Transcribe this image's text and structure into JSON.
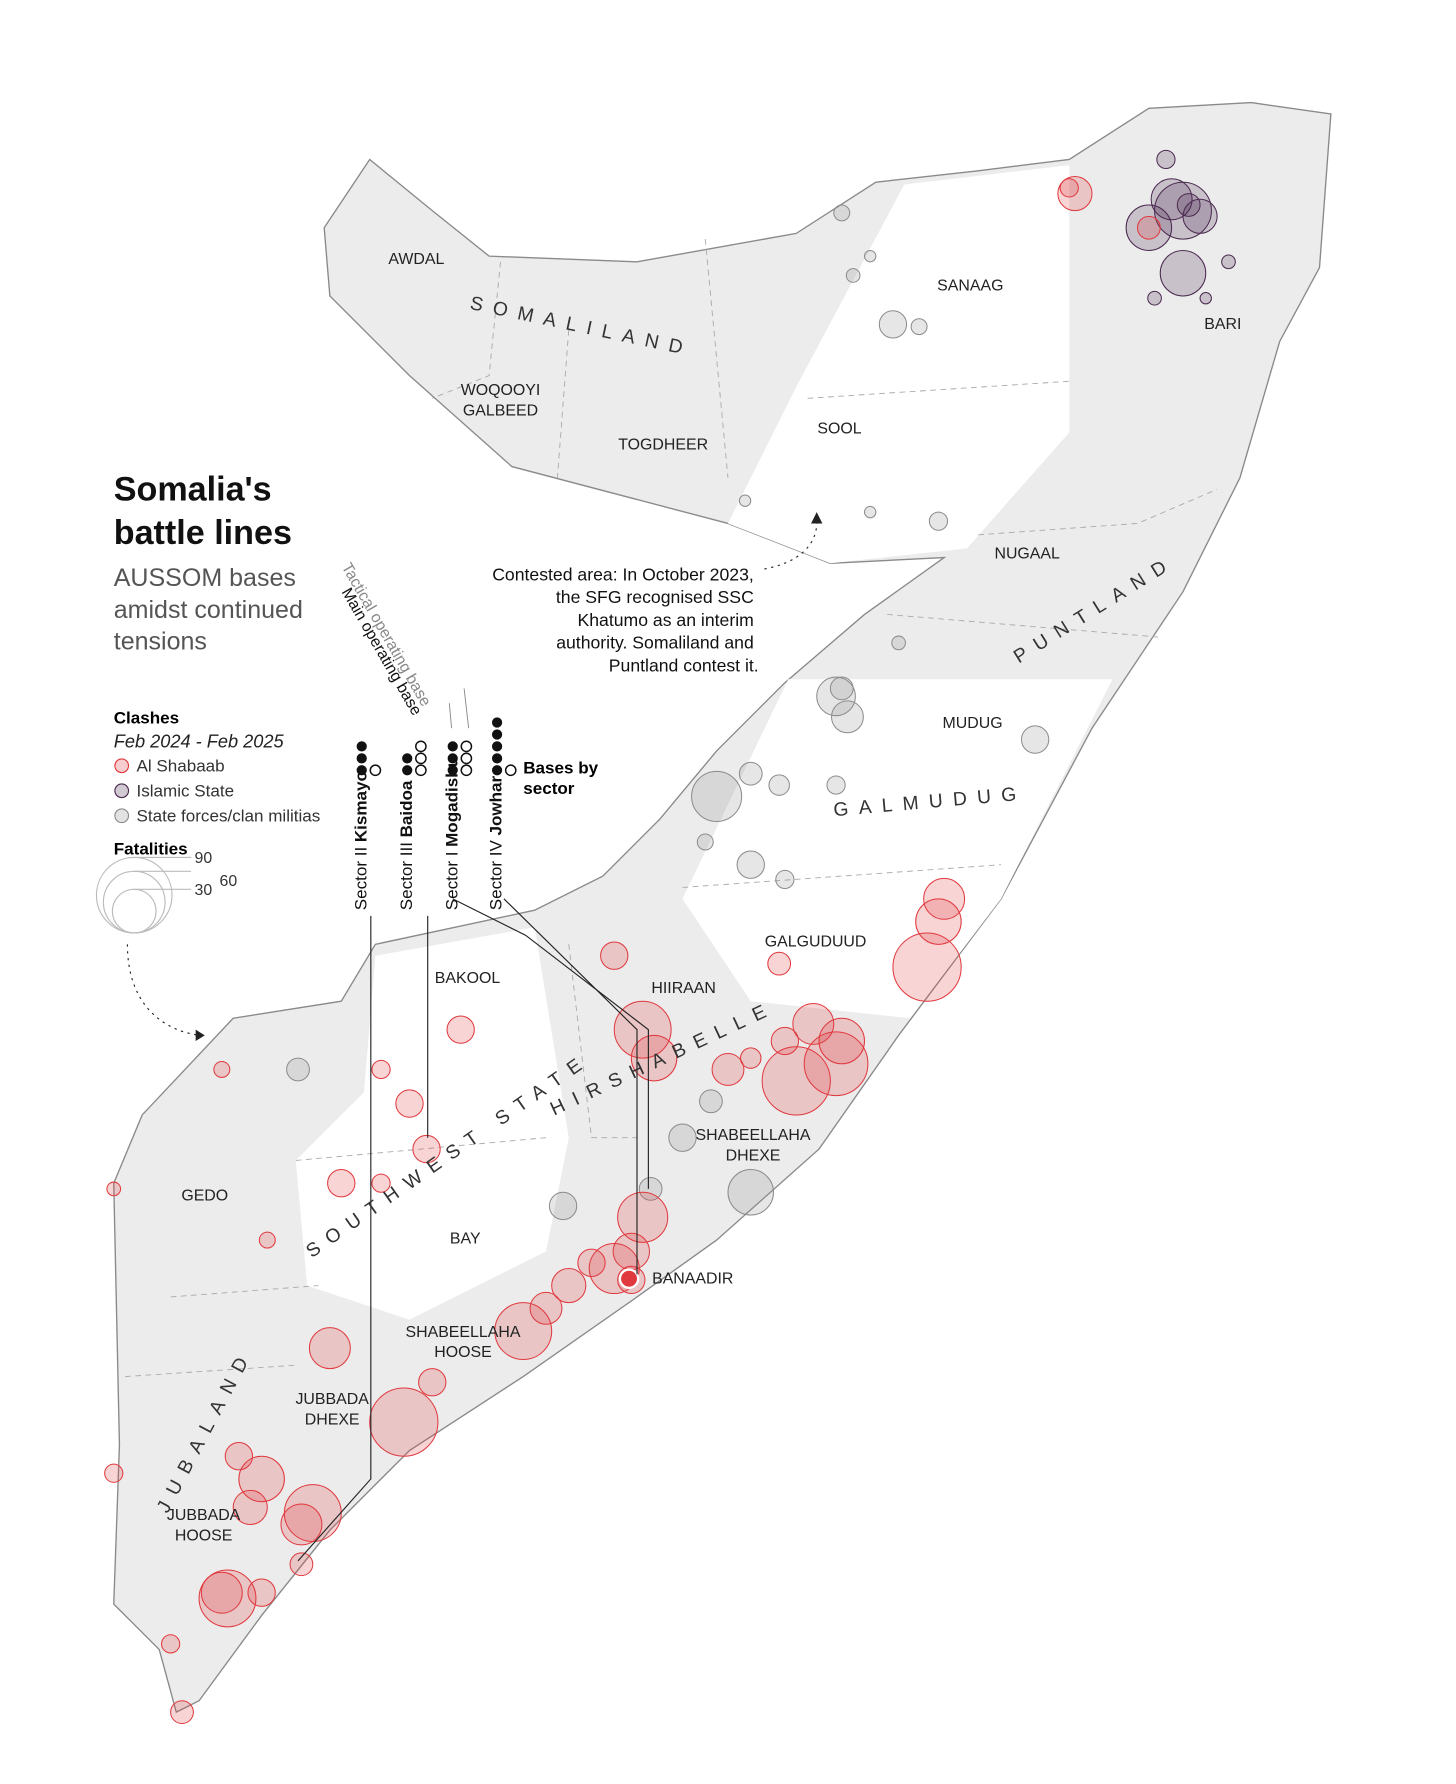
{
  "header": {
    "title_lines": [
      "Somalia's",
      "battle lines"
    ],
    "subtitle_lines": [
      "AUSSOM bases",
      "amidst continued",
      "tensions"
    ]
  },
  "legend": {
    "clashes_title": "Clashes",
    "period": "Feb 2024 - Feb 2025",
    "groups": [
      {
        "name": "Al Shabaab",
        "color": "#e0393e"
      },
      {
        "name": "Islamic State",
        "color": "#4b2a50"
      },
      {
        "name": "State forces/clan militias",
        "color": "#8c8c8c"
      }
    ],
    "fatalities_title": "Fatalities",
    "sizes": [
      90,
      60,
      30
    ]
  },
  "bases": {
    "tactical_label": "Tactical operating base",
    "main_label": "Main operating base",
    "title_lines": [
      "Bases by",
      "sector"
    ],
    "sectors": [
      {
        "name": "Sector II",
        "city": "Kismayo",
        "main": 3,
        "tactical": 1
      },
      {
        "name": "Sector III",
        "city": "Baidoa",
        "main": 2,
        "tactical": 3
      },
      {
        "name": "Sector I",
        "city": "Mogadishu",
        "main": 3,
        "tactical": 3
      },
      {
        "name": "Sector IV",
        "city": "Jowhar",
        "main": 5,
        "tactical": 1
      }
    ]
  },
  "annotation": {
    "lines": [
      "Contested area: In October 2023,",
      "the SFG recognised SSC",
      "Khatumo as an interim",
      "authority. Somaliland and",
      "Puntland contest it."
    ]
  },
  "regions": [
    {
      "lines": [
        "AWDAL"
      ]
    },
    {
      "lines": [
        "SOMALILAND"
      ]
    },
    {
      "lines": [
        "SANAAG"
      ]
    },
    {
      "lines": [
        "BARI"
      ]
    },
    {
      "lines": [
        "WOQOOYI",
        "GALBEED"
      ]
    },
    {
      "lines": [
        "TOGDHEER"
      ]
    },
    {
      "lines": [
        "SOOL"
      ]
    },
    {
      "lines": [
        "NUGAAL"
      ]
    },
    {
      "lines": [
        "PUNTLAND"
      ]
    },
    {
      "lines": [
        "MUDUG"
      ]
    },
    {
      "lines": [
        "GALMUDUG"
      ]
    },
    {
      "lines": [
        "GALGUDUUD"
      ]
    },
    {
      "lines": [
        "HIIRAAN"
      ]
    },
    {
      "lines": [
        "HIRSHABELLE"
      ]
    },
    {
      "lines": [
        "SHABEELLAHA",
        "DHEXE"
      ]
    },
    {
      "lines": [
        "BAKOOL"
      ]
    },
    {
      "lines": [
        "SOUTHWEST STATE"
      ]
    },
    {
      "lines": [
        "BAY"
      ]
    },
    {
      "lines": [
        "BANAADIR"
      ]
    },
    {
      "lines": [
        "SHABEELLAHA",
        "HOOSE"
      ]
    },
    {
      "lines": [
        "GEDO"
      ]
    },
    {
      "lines": [
        "JUBALAND"
      ]
    },
    {
      "lines": [
        "JUBBADA",
        "DHEXE"
      ]
    },
    {
      "lines": [
        "JUBBADA",
        "HOOSE"
      ]
    }
  ]
}
